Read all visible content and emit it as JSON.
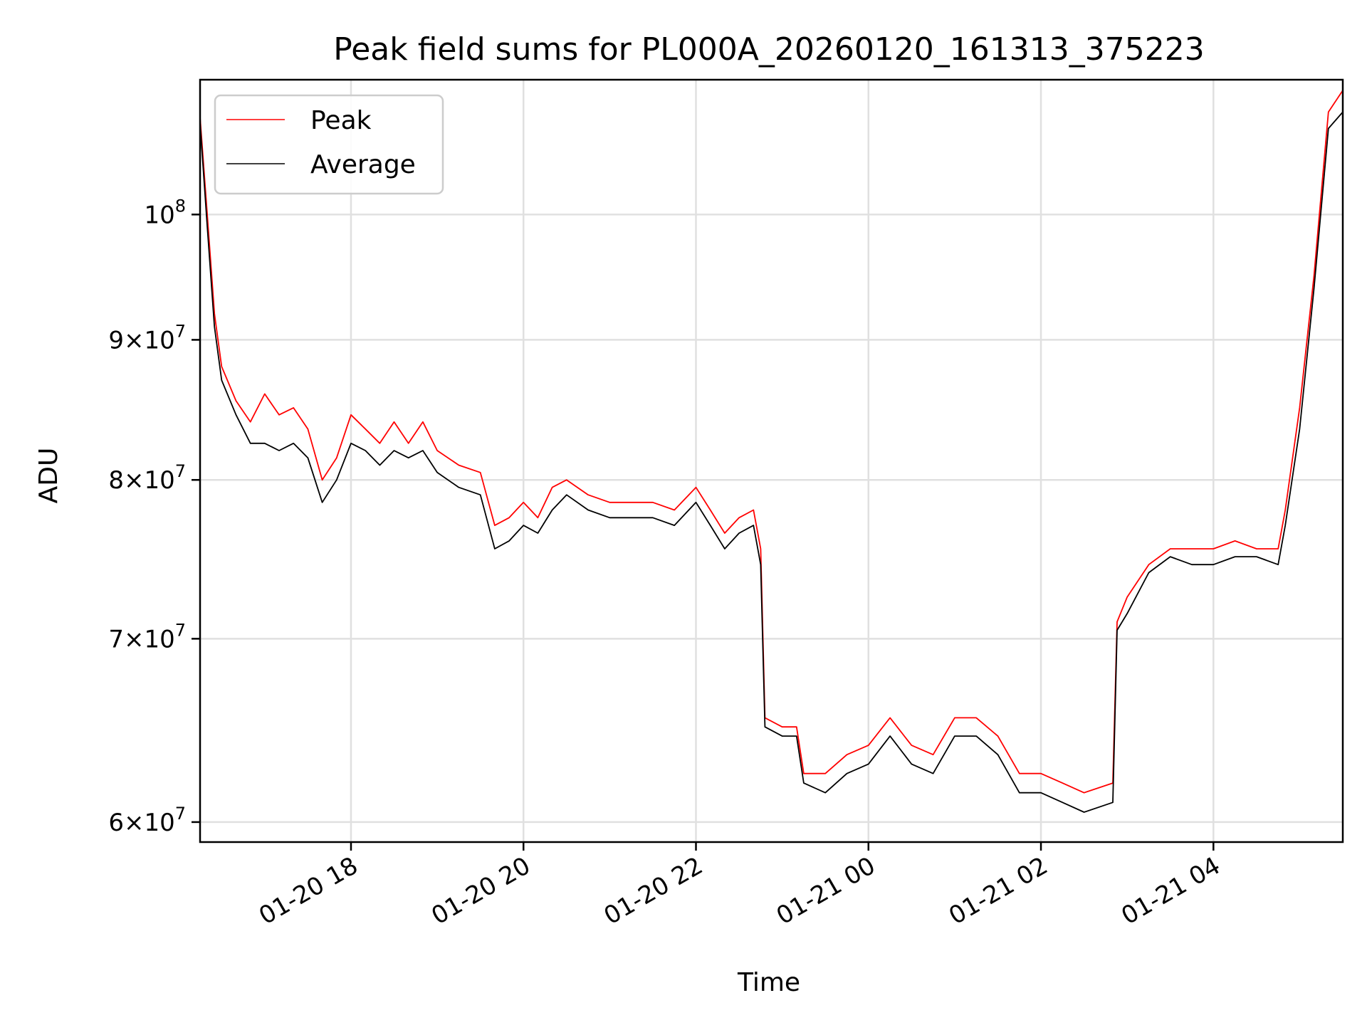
{
  "chart_data": {
    "type": "line",
    "title": "Peak field sums for PL000A_20260120_161313_375223",
    "xlabel": "Time",
    "ylabel": "ADU",
    "x_range": [
      "2026-01-20 16:15",
      "2026-01-21 05:30"
    ],
    "y_range": [
      59000000,
      112000000
    ],
    "y_scale": "log",
    "grid": true,
    "legend_position": "top-left",
    "x_ticks": [
      {
        "value": "2026-01-20 18:00",
        "label": "01-20 18"
      },
      {
        "value": "2026-01-20 20:00",
        "label": "01-20 20"
      },
      {
        "value": "2026-01-20 22:00",
        "label": "01-20 22"
      },
      {
        "value": "2026-01-21 00:00",
        "label": "01-21 00"
      },
      {
        "value": "2026-01-21 02:00",
        "label": "01-21 02"
      },
      {
        "value": "2026-01-21 04:00",
        "label": "01-21 04"
      }
    ],
    "y_ticks": [
      {
        "value": 60000000,
        "mantissa": "6",
        "exponent": "7"
      },
      {
        "value": 70000000,
        "mantissa": "7",
        "exponent": "7"
      },
      {
        "value": 80000000,
        "mantissa": "8",
        "exponent": "7"
      },
      {
        "value": 90000000,
        "mantissa": "9",
        "exponent": "7"
      },
      {
        "value": 100000000,
        "mantissa": "",
        "exponent": "8"
      }
    ],
    "series": [
      {
        "name": "Peak",
        "color": "#ff0000",
        "points": [
          [
            "2026-01-20 16:15",
            108500000
          ],
          [
            "2026-01-20 16:20",
            100000000
          ],
          [
            "2026-01-20 16:25",
            92000000
          ],
          [
            "2026-01-20 16:30",
            88000000
          ],
          [
            "2026-01-20 16:40",
            85500000
          ],
          [
            "2026-01-20 16:50",
            84000000
          ],
          [
            "2026-01-20 17:00",
            86000000
          ],
          [
            "2026-01-20 17:10",
            84500000
          ],
          [
            "2026-01-20 17:20",
            85000000
          ],
          [
            "2026-01-20 17:30",
            83500000
          ],
          [
            "2026-01-20 17:40",
            80000000
          ],
          [
            "2026-01-20 17:50",
            81500000
          ],
          [
            "2026-01-20 18:00",
            84500000
          ],
          [
            "2026-01-20 18:10",
            83500000
          ],
          [
            "2026-01-20 18:20",
            82500000
          ],
          [
            "2026-01-20 18:30",
            84000000
          ],
          [
            "2026-01-20 18:40",
            82500000
          ],
          [
            "2026-01-20 18:50",
            84000000
          ],
          [
            "2026-01-20 19:00",
            82000000
          ],
          [
            "2026-01-20 19:15",
            81000000
          ],
          [
            "2026-01-20 19:30",
            80500000
          ],
          [
            "2026-01-20 19:40",
            77000000
          ],
          [
            "2026-01-20 19:50",
            77500000
          ],
          [
            "2026-01-20 20:00",
            78500000
          ],
          [
            "2026-01-20 20:10",
            77500000
          ],
          [
            "2026-01-20 20:20",
            79500000
          ],
          [
            "2026-01-20 20:30",
            80000000
          ],
          [
            "2026-01-20 20:45",
            79000000
          ],
          [
            "2026-01-20 21:00",
            78500000
          ],
          [
            "2026-01-20 21:15",
            78500000
          ],
          [
            "2026-01-20 21:30",
            78500000
          ],
          [
            "2026-01-20 21:45",
            78000000
          ],
          [
            "2026-01-20 22:00",
            79500000
          ],
          [
            "2026-01-20 22:10",
            78000000
          ],
          [
            "2026-01-20 22:20",
            76500000
          ],
          [
            "2026-01-20 22:30",
            77500000
          ],
          [
            "2026-01-20 22:40",
            78000000
          ],
          [
            "2026-01-20 22:45",
            75500000
          ],
          [
            "2026-01-20 22:48",
            65500000
          ],
          [
            "2026-01-20 23:00",
            65000000
          ],
          [
            "2026-01-20 23:10",
            65000000
          ],
          [
            "2026-01-20 23:15",
            62500000
          ],
          [
            "2026-01-20 23:30",
            62500000
          ],
          [
            "2026-01-20 23:45",
            63500000
          ],
          [
            "2026-01-21 00:00",
            64000000
          ],
          [
            "2026-01-21 00:15",
            65500000
          ],
          [
            "2026-01-21 00:30",
            64000000
          ],
          [
            "2026-01-21 00:45",
            63500000
          ],
          [
            "2026-01-21 01:00",
            65500000
          ],
          [
            "2026-01-21 01:15",
            65500000
          ],
          [
            "2026-01-21 01:30",
            64500000
          ],
          [
            "2026-01-21 01:45",
            62500000
          ],
          [
            "2026-01-21 02:00",
            62500000
          ],
          [
            "2026-01-21 02:15",
            62000000
          ],
          [
            "2026-01-21 02:30",
            61500000
          ],
          [
            "2026-01-21 02:50",
            62000000
          ],
          [
            "2026-01-21 02:53",
            71000000
          ],
          [
            "2026-01-21 03:00",
            72500000
          ],
          [
            "2026-01-21 03:15",
            74500000
          ],
          [
            "2026-01-21 03:30",
            75500000
          ],
          [
            "2026-01-21 03:45",
            75500000
          ],
          [
            "2026-01-21 04:00",
            75500000
          ],
          [
            "2026-01-21 04:15",
            76000000
          ],
          [
            "2026-01-21 04:30",
            75500000
          ],
          [
            "2026-01-21 04:45",
            75500000
          ],
          [
            "2026-01-21 04:50",
            78000000
          ],
          [
            "2026-01-21 05:00",
            85000000
          ],
          [
            "2026-01-21 05:10",
            95000000
          ],
          [
            "2026-01-21 05:20",
            109000000
          ],
          [
            "2026-01-21 05:30",
            111000000
          ]
        ]
      },
      {
        "name": "Average",
        "color": "#000000",
        "points": [
          [
            "2026-01-20 16:15",
            108000000
          ],
          [
            "2026-01-20 16:20",
            99000000
          ],
          [
            "2026-01-20 16:25",
            91000000
          ],
          [
            "2026-01-20 16:30",
            87000000
          ],
          [
            "2026-01-20 16:40",
            84500000
          ],
          [
            "2026-01-20 16:50",
            82500000
          ],
          [
            "2026-01-20 17:00",
            82500000
          ],
          [
            "2026-01-20 17:10",
            82000000
          ],
          [
            "2026-01-20 17:20",
            82500000
          ],
          [
            "2026-01-20 17:30",
            81500000
          ],
          [
            "2026-01-20 17:40",
            78500000
          ],
          [
            "2026-01-20 17:50",
            80000000
          ],
          [
            "2026-01-20 18:00",
            82500000
          ],
          [
            "2026-01-20 18:10",
            82000000
          ],
          [
            "2026-01-20 18:20",
            81000000
          ],
          [
            "2026-01-20 18:30",
            82000000
          ],
          [
            "2026-01-20 18:40",
            81500000
          ],
          [
            "2026-01-20 18:50",
            82000000
          ],
          [
            "2026-01-20 19:00",
            80500000
          ],
          [
            "2026-01-20 19:15",
            79500000
          ],
          [
            "2026-01-20 19:30",
            79000000
          ],
          [
            "2026-01-20 19:40",
            75500000
          ],
          [
            "2026-01-20 19:50",
            76000000
          ],
          [
            "2026-01-20 20:00",
            77000000
          ],
          [
            "2026-01-20 20:10",
            76500000
          ],
          [
            "2026-01-20 20:20",
            78000000
          ],
          [
            "2026-01-20 20:30",
            79000000
          ],
          [
            "2026-01-20 20:45",
            78000000
          ],
          [
            "2026-01-20 21:00",
            77500000
          ],
          [
            "2026-01-20 21:15",
            77500000
          ],
          [
            "2026-01-20 21:30",
            77500000
          ],
          [
            "2026-01-20 21:45",
            77000000
          ],
          [
            "2026-01-20 22:00",
            78500000
          ],
          [
            "2026-01-20 22:10",
            77000000
          ],
          [
            "2026-01-20 22:20",
            75500000
          ],
          [
            "2026-01-20 22:30",
            76500000
          ],
          [
            "2026-01-20 22:40",
            77000000
          ],
          [
            "2026-01-20 22:45",
            74500000
          ],
          [
            "2026-01-20 22:48",
            65000000
          ],
          [
            "2026-01-20 23:00",
            64500000
          ],
          [
            "2026-01-20 23:10",
            64500000
          ],
          [
            "2026-01-20 23:15",
            62000000
          ],
          [
            "2026-01-20 23:30",
            61500000
          ],
          [
            "2026-01-20 23:45",
            62500000
          ],
          [
            "2026-01-21 00:00",
            63000000
          ],
          [
            "2026-01-21 00:15",
            64500000
          ],
          [
            "2026-01-21 00:30",
            63000000
          ],
          [
            "2026-01-21 00:45",
            62500000
          ],
          [
            "2026-01-21 01:00",
            64500000
          ],
          [
            "2026-01-21 01:15",
            64500000
          ],
          [
            "2026-01-21 01:30",
            63500000
          ],
          [
            "2026-01-21 01:45",
            61500000
          ],
          [
            "2026-01-21 02:00",
            61500000
          ],
          [
            "2026-01-21 02:15",
            61000000
          ],
          [
            "2026-01-21 02:30",
            60500000
          ],
          [
            "2026-01-21 02:50",
            61000000
          ],
          [
            "2026-01-21 02:53",
            70500000
          ],
          [
            "2026-01-21 03:00",
            71500000
          ],
          [
            "2026-01-21 03:15",
            74000000
          ],
          [
            "2026-01-21 03:30",
            75000000
          ],
          [
            "2026-01-21 03:45",
            74500000
          ],
          [
            "2026-01-21 04:00",
            74500000
          ],
          [
            "2026-01-21 04:15",
            75000000
          ],
          [
            "2026-01-21 04:30",
            75000000
          ],
          [
            "2026-01-21 04:45",
            74500000
          ],
          [
            "2026-01-21 04:50",
            77000000
          ],
          [
            "2026-01-21 05:00",
            83500000
          ],
          [
            "2026-01-21 05:10",
            94000000
          ],
          [
            "2026-01-21 05:20",
            107500000
          ],
          [
            "2026-01-21 05:30",
            109000000
          ]
        ]
      }
    ]
  }
}
